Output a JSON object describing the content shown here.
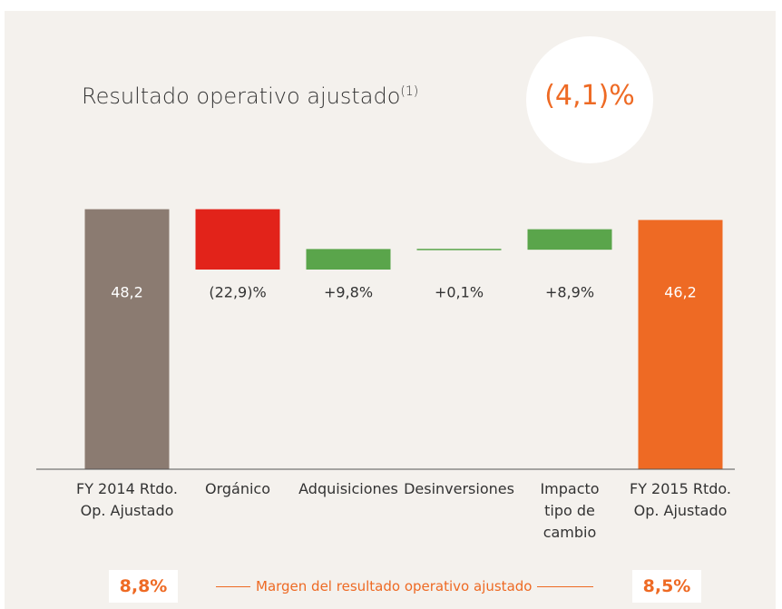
{
  "chart_data": {
    "type": "waterfall",
    "title": "Resultado operativo ajustado",
    "title_note": "(1)",
    "highlight": "(4,1)%",
    "categories": [
      "FY 2014 Rtdo.\nOp. Ajustado",
      "Orgánico",
      "Adquisiciones",
      "Desinversiones",
      "Impacto\ntipo de\ncambio",
      "FY 2015 Rtdo.\nOp. Ajustado"
    ],
    "values": [
      48.2,
      -22.9,
      9.8,
      0.1,
      8.9,
      46.2
    ],
    "value_labels": [
      "48,2",
      "(22,9)%",
      "+9,8%",
      "+0,1%",
      "+8,9%",
      "46,2"
    ],
    "measures": [
      "total",
      "relative",
      "relative",
      "relative",
      "relative",
      "total"
    ],
    "colors": [
      "#8b7b71",
      "#e2231a",
      "#5aa54b",
      "#5aa54b",
      "#5aa54b",
      "#ee6a24"
    ],
    "footer": {
      "start": "8,8%",
      "label": "Margen del resultado operativo ajustado",
      "end": "8,5%"
    }
  }
}
